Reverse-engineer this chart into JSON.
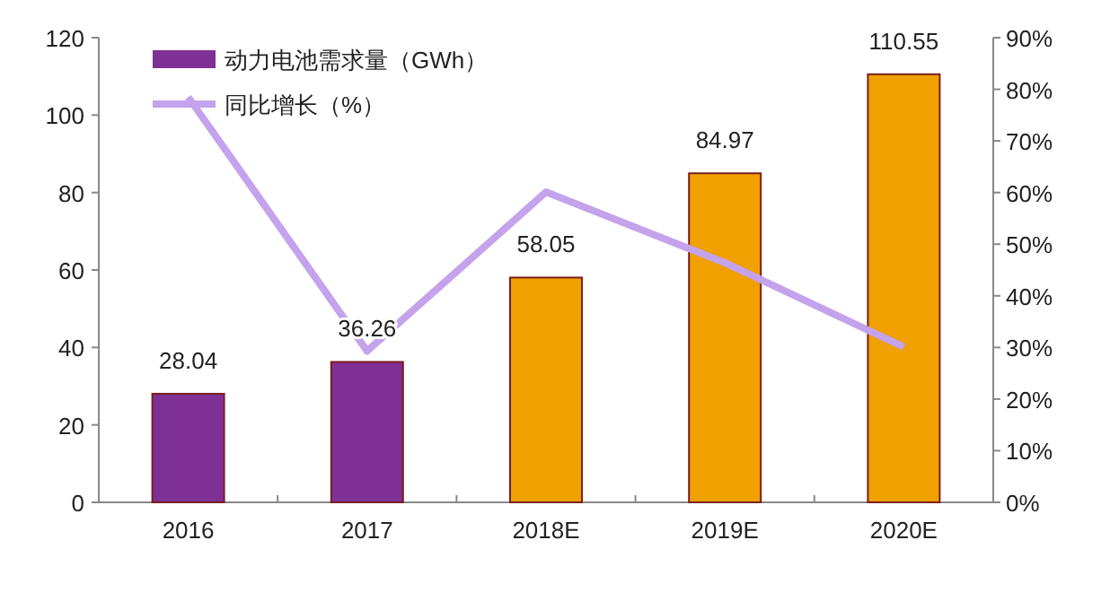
{
  "chart_data": {
    "type": "bar",
    "categories": [
      "2016",
      "2017",
      "2018E",
      "2019E",
      "2020E"
    ],
    "series": [
      {
        "name": "动力电池需求量（GWh）",
        "color": "#7f3094",
        "colors": [
          "#7f3094",
          "#7f3094",
          "#f0a000",
          "#f0a000",
          "#f0a000"
        ],
        "values": [
          28.04,
          36.26,
          58.05,
          84.97,
          110.55
        ],
        "value_labels": [
          "28.04",
          "36.26",
          "58.05",
          "84.97",
          "110.55"
        ]
      },
      {
        "name": "同比增长（%）",
        "type": "line",
        "axis": "y2",
        "color": "#c4a2ec",
        "values": [
          78.5,
          29.3,
          60.1,
          46.4,
          30.1
        ]
      }
    ],
    "ylim": [
      0,
      120
    ],
    "yticks": [
      0,
      20,
      40,
      60,
      80,
      100,
      120
    ],
    "y2lim": [
      0,
      90
    ],
    "y2ticks": [
      {
        "value": 0,
        "label": "0%"
      },
      {
        "value": 10,
        "label": "10%"
      },
      {
        "value": 20,
        "label": "20%"
      },
      {
        "value": 30,
        "label": "30%"
      },
      {
        "value": 40,
        "label": "40%"
      },
      {
        "value": 50,
        "label": "50%"
      },
      {
        "value": 60,
        "label": "60%"
      },
      {
        "value": 70,
        "label": "70%"
      },
      {
        "value": 80,
        "label": "80%"
      },
      {
        "value": 90,
        "label": "90%"
      }
    ],
    "grid": false,
    "legend": "top left",
    "marker": "none",
    "line_style": "solid"
  }
}
